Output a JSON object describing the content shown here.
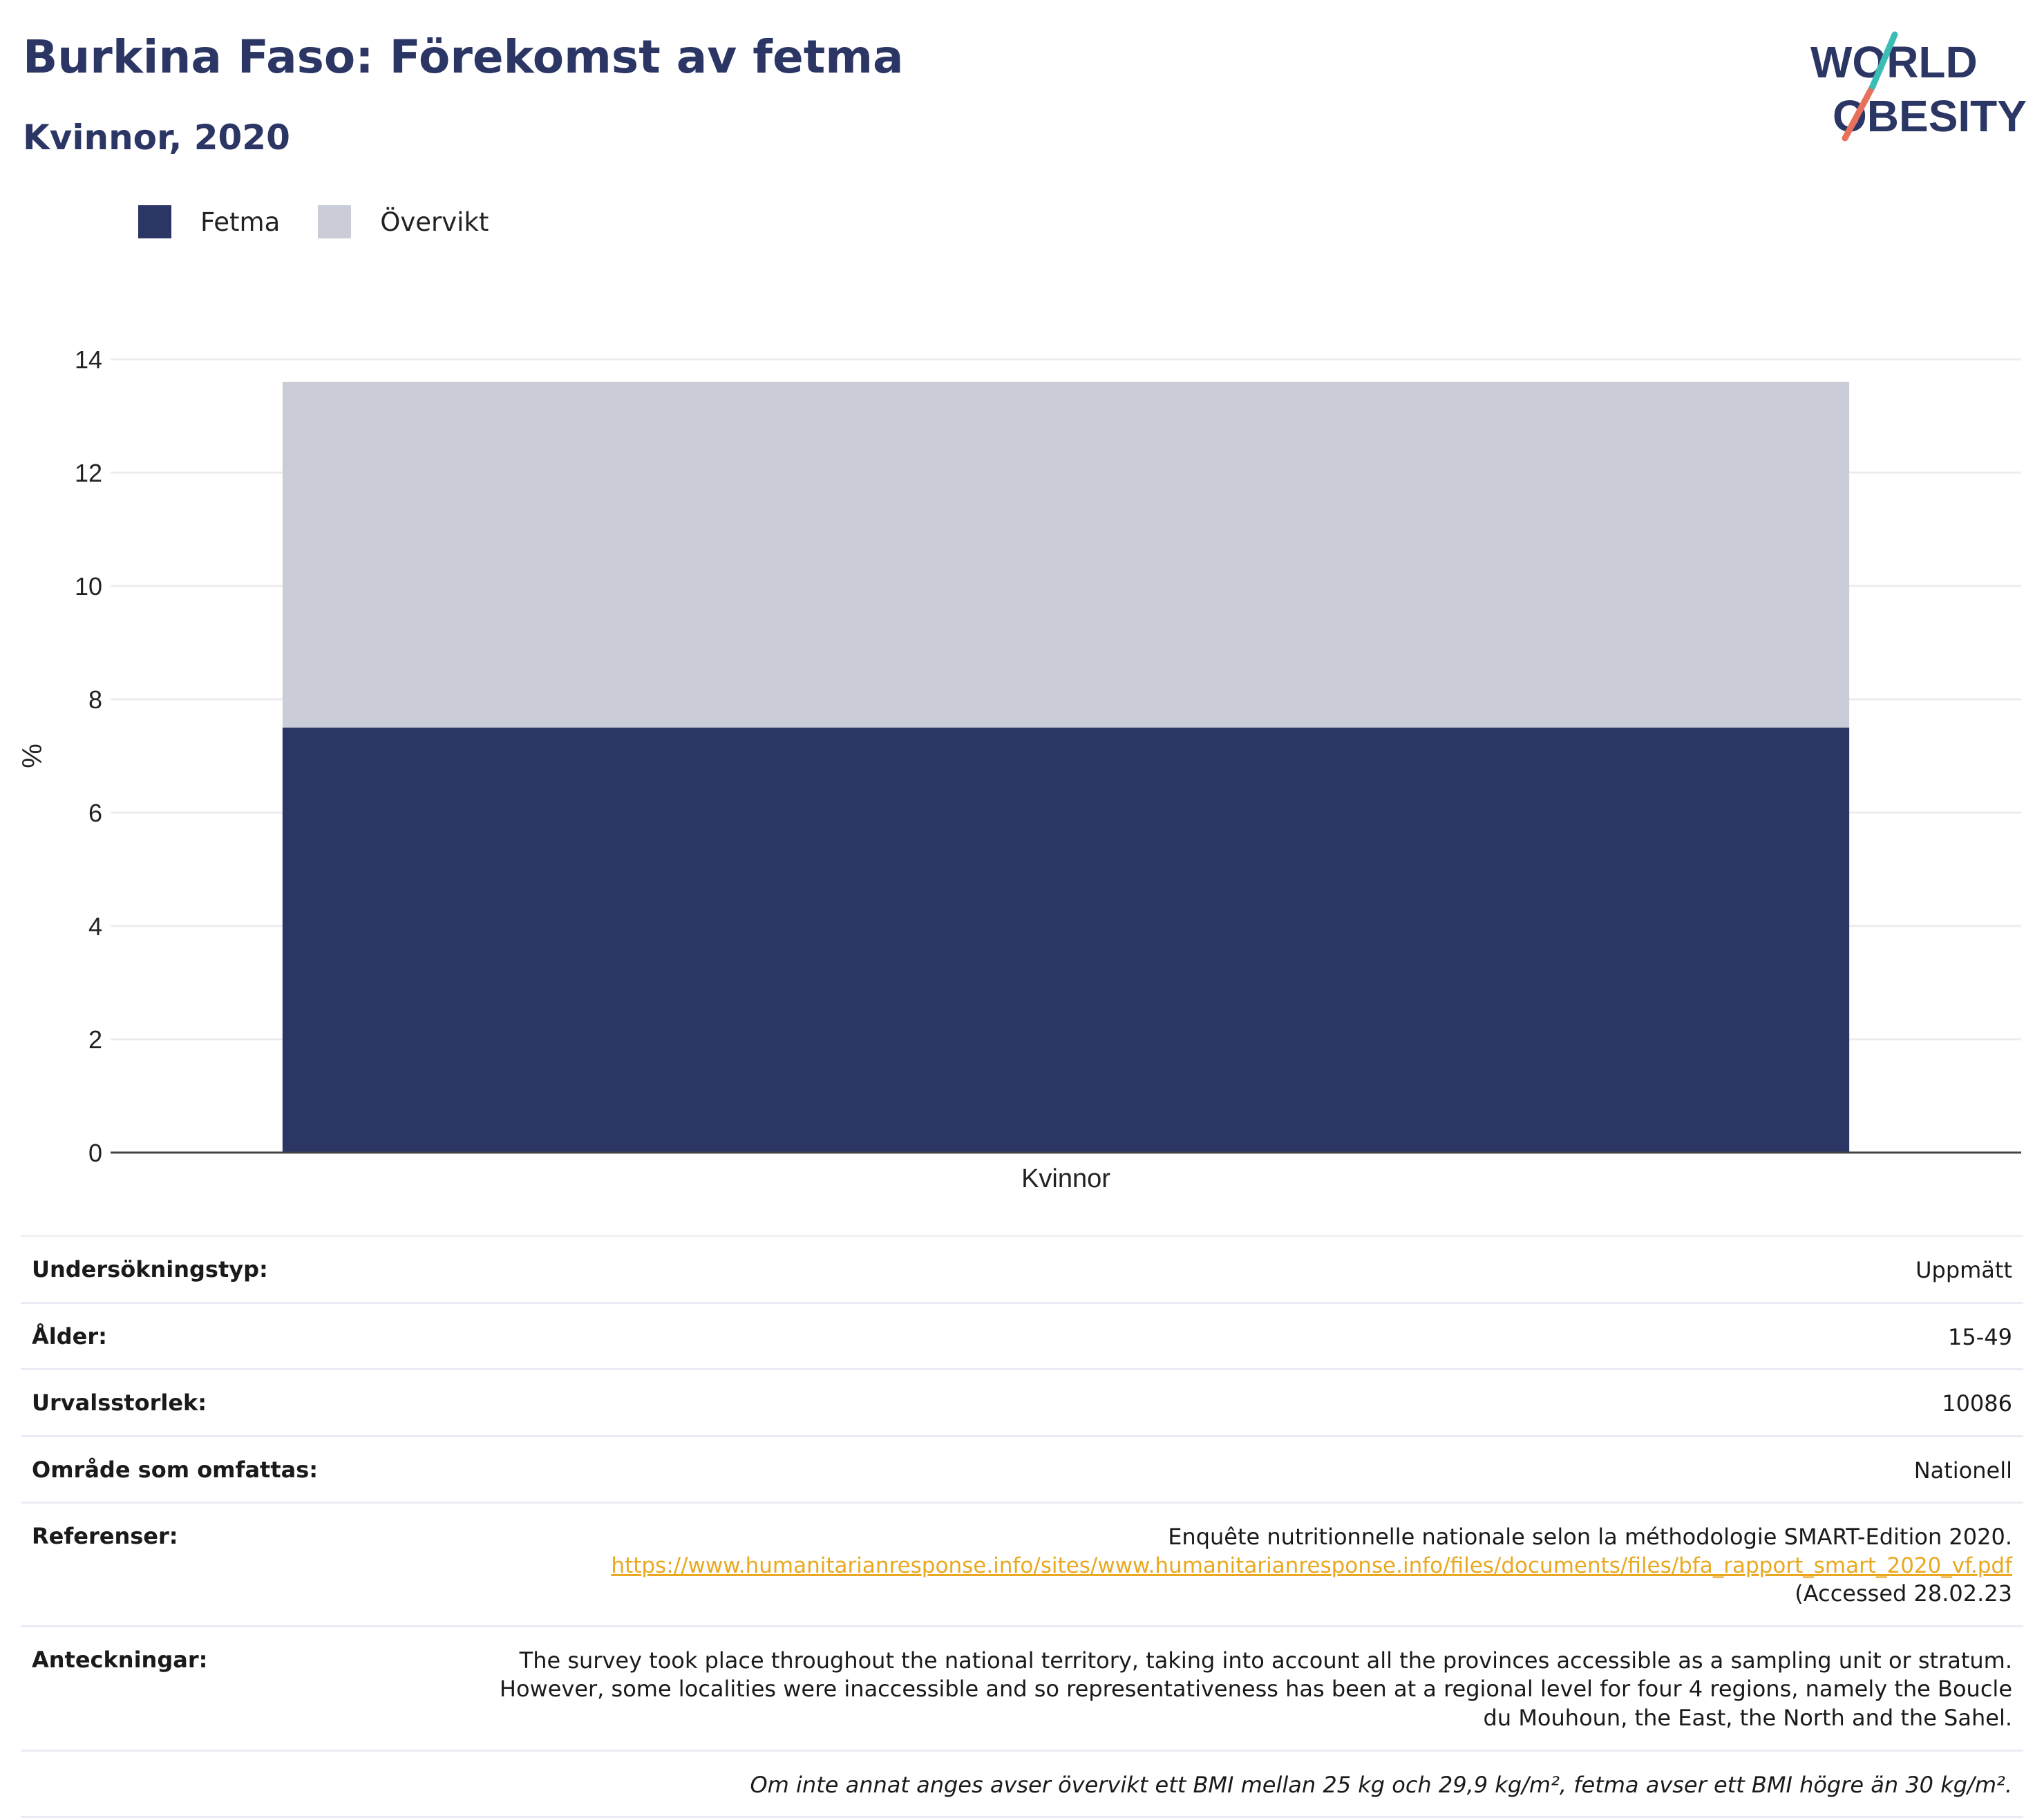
{
  "header": {
    "title": "Burkina Faso: Förekomst av fetma",
    "subtitle": "Kvinnor, 2020"
  },
  "logo": {
    "line1": "WORLD",
    "line2": "OBESITY"
  },
  "legend": [
    {
      "label": "Fetma",
      "color": "#2b3664"
    },
    {
      "label": "Övervikt",
      "color": "#caccd7"
    }
  ],
  "chart_data": {
    "type": "bar",
    "stacked": true,
    "categories": [
      "Kvinnor"
    ],
    "series": [
      {
        "name": "Fetma",
        "values": [
          7.5
        ],
        "color": "#2b3664"
      },
      {
        "name": "Övervikt",
        "values": [
          6.1
        ],
        "color": "#caccd7"
      }
    ],
    "ylabel": "%",
    "xlabel": "",
    "ylim": [
      0,
      14
    ],
    "yticks": [
      0,
      2,
      4,
      6,
      8,
      10,
      12,
      14
    ],
    "grid": true,
    "legend_position": "top-left"
  },
  "table": {
    "rows": [
      {
        "label": "Undersökningstyp:",
        "value": "Uppmätt"
      },
      {
        "label": "Ålder:",
        "value": "15-49"
      },
      {
        "label": "Urvalsstorlek:",
        "value": "10086"
      },
      {
        "label": "Område som omfattas:",
        "value": "Nationell"
      }
    ],
    "references": {
      "label": "Referenser:",
      "text": "Enquête nutritionnelle nationale selon la méthodologie SMART-Edition 2020.",
      "link": "https://www.humanitarianresponse.info/sites/www.humanitarianresponse.info/files/documents/files/bfa_rapport_smart_2020_vf.pdf",
      "accessed": "(Accessed 28.02.23"
    },
    "notes": {
      "label": "Anteckningar:",
      "line1": "The survey took place throughout the national territory, taking into account all the provinces accessible as a sampling unit or stratum.",
      "line2": "However, some localities were inaccessible and so representativeness has been at a regional level for four 4 regions, namely the Boucle",
      "line3": "du Mouhoun, the East, the North and the Sahel."
    },
    "footnote": "Om inte annat anges avser övervikt ett BMI mellan 25 kg och 29,9 kg/m², fetma avser ett BMI högre än 30 kg/m²."
  }
}
